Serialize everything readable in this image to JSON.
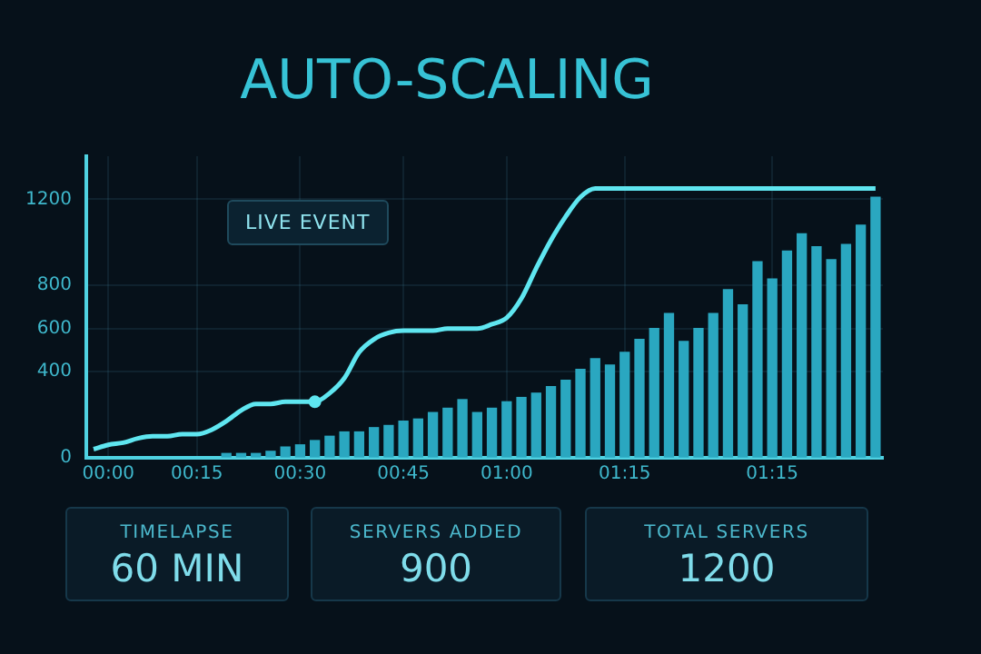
{
  "chart_data": [
    {
      "type": "line",
      "title": "AUTO-SCALING",
      "annotations": [
        "LIVE EVENT"
      ],
      "grid": true,
      "categories": [
        null,
        "00:00",
        null,
        null,
        null,
        null,
        null,
        "00:15",
        null,
        null,
        null,
        null,
        null,
        null,
        "00:30",
        null,
        null,
        null,
        null,
        null,
        null,
        "00:45",
        null,
        null,
        null,
        null,
        null,
        null,
        "01:00",
        null,
        null,
        null,
        null,
        null,
        null,
        null,
        "01:15",
        null,
        null,
        null,
        null,
        null,
        null,
        null,
        null,
        null,
        "01:15",
        null,
        null,
        null,
        null,
        null,
        null,
        null
      ],
      "ylim": [
        0,
        1400
      ],
      "yticks": [
        0,
        400,
        600,
        800,
        1200
      ],
      "series": [
        {
          "type": "bar",
          "color": "#2aa7c0",
          "values": [
            null,
            null,
            null,
            null,
            null,
            null,
            null,
            null,
            null,
            20,
            20,
            20,
            30,
            50,
            60,
            80,
            100,
            120,
            120,
            140,
            150,
            170,
            180,
            210,
            230,
            270,
            210,
            230,
            260,
            280,
            300,
            330,
            360,
            410,
            460,
            430,
            490,
            550,
            600,
            670,
            540,
            600,
            670,
            780,
            710,
            910,
            830,
            960,
            1040,
            980,
            920,
            990,
            1080,
            1210
          ]
        },
        {
          "type": "line",
          "color": "#5fe6f0",
          "marker": "none",
          "values": [
            40,
            60,
            70,
            90,
            100,
            100,
            110,
            110,
            130,
            170,
            220,
            250,
            250,
            260,
            260,
            260,
            300,
            370,
            490,
            550,
            580,
            590,
            590,
            590,
            600,
            600,
            600,
            620,
            650,
            740,
            880,
            1010,
            1120,
            1210,
            1250,
            1250,
            1250,
            1250,
            1250,
            1250,
            1250,
            1250,
            1250,
            1250,
            1250,
            1250,
            1250,
            1250,
            1250,
            1250,
            1250,
            1250,
            1250,
            1250
          ]
        },
        {
          "type": "scatter",
          "color": "#5fe6f0",
          "marker": "circle",
          "values": [
            null,
            null,
            null,
            null,
            null,
            null,
            null,
            null,
            null,
            null,
            null,
            null,
            null,
            null,
            null,
            260,
            null,
            null,
            null,
            null,
            null,
            null,
            null,
            null,
            null,
            null,
            null,
            null,
            null,
            null,
            null,
            null,
            null,
            null,
            null,
            null,
            null,
            null,
            null,
            null,
            null,
            null,
            null,
            null,
            null,
            null,
            null,
            null,
            null,
            null,
            null,
            null,
            null,
            null
          ]
        }
      ]
    },
    {
      "type": "other",
      "annotations": [
        "TIMELAPSE",
        "60 MIN",
        "SERVERS ADDED",
        "900",
        "TOTAL SERVERS",
        "1200"
      ]
    }
  ]
}
